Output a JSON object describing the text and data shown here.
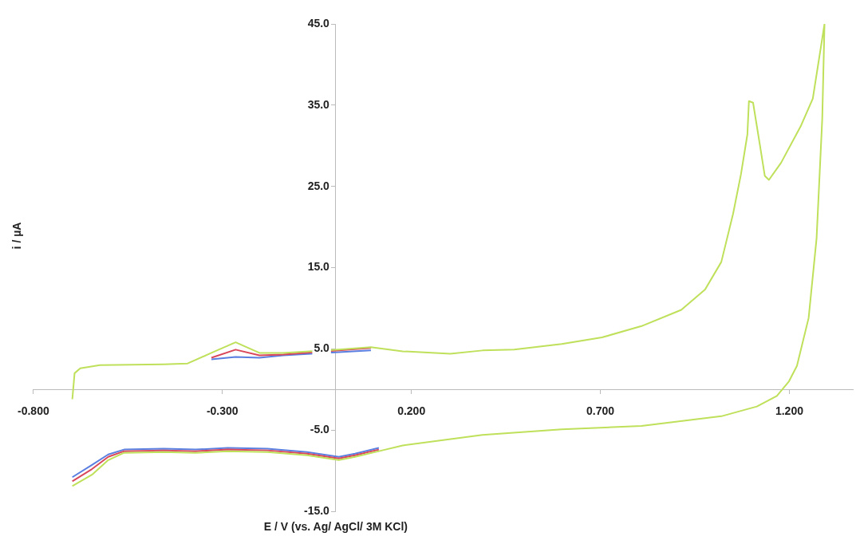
{
  "chart_data": {
    "type": "line",
    "xlabel": "E / V (vs. Ag/ AgCl/ 3M KCl)",
    "ylabel": "i / µA",
    "x": [
      -0.697,
      -0.691,
      -0.676,
      -0.624,
      -0.455,
      -0.392,
      -0.329,
      -0.265,
      -0.202,
      -0.139,
      0.008,
      0.093,
      0.177,
      0.303,
      0.388,
      0.472,
      0.598,
      0.704,
      0.809,
      0.914,
      0.977,
      1.02,
      1.051,
      1.072,
      1.089,
      1.093,
      1.104,
      1.121,
      1.135,
      1.146,
      1.178,
      1.23,
      1.262,
      1.293,
      1.287,
      1.272,
      1.251,
      1.22,
      1.199,
      1.167,
      1.114,
      1.02,
      0.809,
      0.598,
      0.388,
      0.177,
      0.114,
      0.051,
      0.008,
      -0.076,
      -0.181,
      -0.286,
      -0.371,
      -0.455,
      -0.56,
      -0.602,
      -0.645,
      -0.697
    ],
    "series": [
      {
        "color": "#5b7fe0",
        "values": [
          null,
          null,
          null,
          null,
          null,
          null,
          3.7,
          4.0,
          3.9,
          4.2,
          4.6,
          4.8,
          null,
          null,
          null,
          null,
          null,
          null,
          null,
          null,
          null,
          null,
          null,
          null,
          null,
          null,
          null,
          null,
          null,
          null,
          null,
          null,
          null,
          null,
          null,
          null,
          null,
          null,
          null,
          null,
          null,
          null,
          null,
          null,
          null,
          null,
          -7.2,
          -7.9,
          -8.3,
          -7.7,
          -7.3,
          -7.2,
          -7.4,
          -7.3,
          -7.4,
          -8.0,
          -9.3,
          -10.8
        ]
      },
      {
        "color": "#d9475a",
        "values": [
          null,
          null,
          null,
          null,
          null,
          null,
          3.9,
          4.9,
          4.2,
          4.3,
          4.8,
          5.1,
          null,
          null,
          null,
          null,
          null,
          null,
          null,
          null,
          null,
          null,
          null,
          null,
          null,
          null,
          null,
          null,
          null,
          null,
          null,
          null,
          null,
          null,
          null,
          null,
          null,
          null,
          null,
          null,
          null,
          null,
          null,
          null,
          null,
          null,
          -7.4,
          -8.1,
          -8.5,
          -7.9,
          -7.5,
          -7.4,
          -7.6,
          -7.5,
          -7.6,
          -8.3,
          -9.8,
          -11.3
        ]
      },
      {
        "color": "#bfe05a",
        "values": [
          -1.2,
          2.0,
          2.6,
          3.0,
          3.1,
          3.2,
          4.5,
          5.8,
          4.5,
          4.5,
          4.9,
          5.2,
          4.7,
          4.4,
          4.8,
          4.9,
          5.6,
          6.4,
          7.8,
          9.8,
          12.3,
          15.7,
          21.6,
          26.5,
          31.4,
          35.5,
          35.3,
          30.4,
          26.3,
          25.8,
          27.9,
          32.4,
          35.8,
          45.0,
          33.3,
          18.6,
          8.8,
          2.9,
          1.0,
          -0.8,
          -2.1,
          -3.3,
          -4.5,
          -4.9,
          -5.6,
          -6.9,
          -7.6,
          -8.3,
          -8.7,
          -8.1,
          -7.7,
          -7.6,
          -7.8,
          -7.7,
          -7.8,
          -8.7,
          -10.5,
          -11.9
        ]
      }
    ],
    "xlim": [
      -0.8,
      1.37
    ],
    "xticks": [
      {
        "value": -0.8,
        "label": "-0.800"
      },
      {
        "value": -0.3,
        "label": "-0.300"
      },
      {
        "value": 0.2,
        "label": "0.200"
      },
      {
        "value": 0.7,
        "label": "0.700"
      },
      {
        "value": 1.2,
        "label": "1.200"
      }
    ],
    "ylim": [
      -15,
      45
    ],
    "yticks": [
      {
        "value": -15,
        "label": "-15.0"
      },
      {
        "value": -5,
        "label": "-5.0"
      },
      {
        "value": 5,
        "label": "5.0"
      },
      {
        "value": 15,
        "label": "15.0"
      },
      {
        "value": 25,
        "label": "25.0"
      },
      {
        "value": 35,
        "label": "35.0"
      },
      {
        "value": 45,
        "label": "45.0"
      }
    ],
    "grid": false,
    "legend": false,
    "marker": "none",
    "line_style": "solid"
  }
}
